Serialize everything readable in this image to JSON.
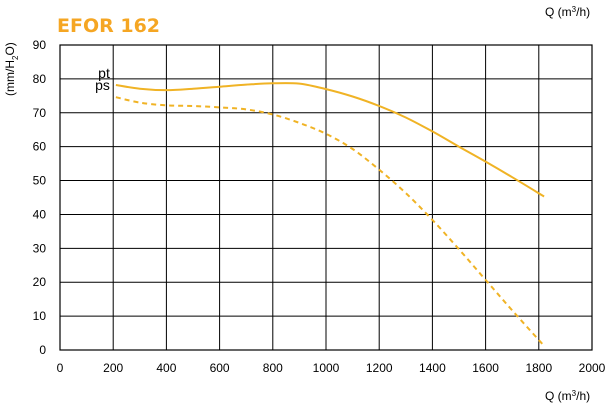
{
  "chart_data": {
    "type": "line",
    "title": "EFOR  162",
    "title_color": "#F5A623",
    "xlabel_base": "Q (m",
    "xlabel_sup": "3",
    "xlabel_tail": "/h)",
    "ylabel_base": "(mm/H",
    "ylabel_sub": "2",
    "ylabel_tail": "O)",
    "xlim": [
      0,
      2000
    ],
    "ylim": [
      0,
      90
    ],
    "x_ticks": [
      0,
      200,
      400,
      600,
      800,
      1000,
      1200,
      1400,
      1600,
      1800,
      2000
    ],
    "y_ticks": [
      0,
      10,
      20,
      30,
      40,
      50,
      60,
      70,
      80,
      90
    ],
    "grid": true,
    "line_color": "#F0B325",
    "series": [
      {
        "name": "pt",
        "style": "solid",
        "x": [
          210,
          300,
          400,
          500,
          600,
          700,
          800,
          900,
          1000,
          1100,
          1200,
          1300,
          1400,
          1500,
          1600,
          1700,
          1820
        ],
        "y": [
          78.2,
          77.1,
          76.7,
          77.1,
          77.7,
          78.3,
          78.7,
          78.6,
          77.0,
          74.8,
          72.0,
          68.6,
          64.5,
          60.0,
          55.6,
          51.0,
          45.3
        ]
      },
      {
        "name": "ps",
        "style": "dashed",
        "x": [
          210,
          300,
          400,
          500,
          600,
          700,
          800,
          900,
          1000,
          1100,
          1200,
          1300,
          1400,
          1500,
          1600,
          1700,
          1820
        ],
        "y": [
          74.6,
          73.0,
          72.2,
          72.0,
          71.6,
          71.0,
          69.5,
          67.0,
          63.8,
          59.3,
          53.2,
          46.3,
          38.4,
          29.7,
          20.7,
          11.7,
          1.2
        ]
      }
    ]
  }
}
